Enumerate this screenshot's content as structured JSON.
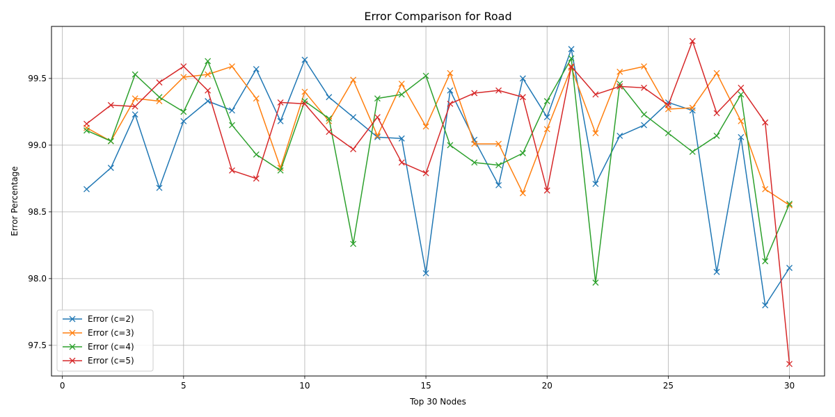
{
  "chart_data": {
    "type": "line",
    "title": "Error Comparison for Road",
    "xlabel": "Top 30 Nodes",
    "ylabel": "Error Percentage",
    "xlim": [
      -0.45,
      31.45
    ],
    "ylim": [
      97.27,
      99.89
    ],
    "xticks": [
      0,
      5,
      10,
      15,
      20,
      25,
      30
    ],
    "yticks": [
      97.5,
      98.0,
      98.5,
      99.0,
      99.5
    ],
    "ytick_labels": [
      "97.5",
      "98.0",
      "98.5",
      "99.0",
      "99.5"
    ],
    "grid": true,
    "legend_position": "lower-left",
    "marker": "x",
    "x": [
      1,
      2,
      3,
      4,
      5,
      6,
      7,
      8,
      9,
      10,
      11,
      12,
      13,
      14,
      15,
      16,
      17,
      18,
      19,
      20,
      21,
      22,
      23,
      24,
      25,
      26,
      27,
      28,
      29,
      30
    ],
    "series": [
      {
        "name": "Error (c=2)",
        "color": "#1f77b4",
        "values": [
          98.67,
          98.83,
          99.23,
          98.68,
          99.18,
          99.33,
          99.26,
          99.57,
          99.18,
          99.64,
          99.36,
          99.21,
          99.06,
          99.05,
          98.04,
          99.41,
          99.04,
          98.7,
          99.5,
          99.21,
          99.72,
          98.71,
          99.07,
          99.15,
          99.32,
          99.26,
          98.05,
          99.06,
          97.8,
          98.08
        ]
      },
      {
        "name": "Error (c=3)",
        "color": "#ff7f0e",
        "values": [
          99.13,
          99.03,
          99.35,
          99.33,
          99.51,
          99.53,
          99.59,
          99.35,
          98.83,
          99.4,
          99.18,
          99.49,
          99.07,
          99.46,
          99.14,
          99.54,
          99.01,
          99.01,
          98.64,
          99.12,
          99.58,
          99.09,
          99.55,
          99.59,
          99.27,
          99.28,
          99.54,
          99.18,
          98.67,
          98.55
        ]
      },
      {
        "name": "Error (c=4)",
        "color": "#2ca02c",
        "values": [
          99.11,
          99.03,
          99.53,
          99.36,
          99.25,
          99.63,
          99.15,
          98.93,
          98.81,
          99.33,
          99.2,
          98.26,
          99.35,
          99.38,
          99.52,
          99.0,
          98.87,
          98.85,
          98.94,
          99.33,
          99.65,
          97.97,
          99.46,
          99.23,
          99.09,
          98.95,
          99.07,
          99.38,
          98.13,
          98.56
        ]
      },
      {
        "name": "Error (c=5)",
        "color": "#d62728",
        "values": [
          99.16,
          99.3,
          99.29,
          99.47,
          99.59,
          99.41,
          98.81,
          98.75,
          99.32,
          99.31,
          99.1,
          98.97,
          99.21,
          98.87,
          98.79,
          99.31,
          99.39,
          99.41,
          99.36,
          98.66,
          99.59,
          99.38,
          99.44,
          99.43,
          99.3,
          99.78,
          99.24,
          99.43,
          99.17,
          97.36
        ]
      }
    ]
  }
}
